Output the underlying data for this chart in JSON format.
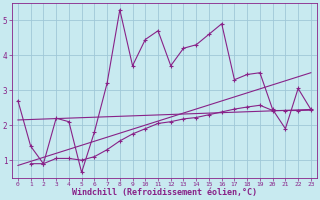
{
  "xlabel": "Windchill (Refroidissement éolien,°C)",
  "bg_color": "#c8eaf0",
  "grid_color": "#a0c8d8",
  "line_color": "#882288",
  "xlim": [
    -0.5,
    23.5
  ],
  "ylim": [
    0.5,
    5.5
  ],
  "xticks": [
    0,
    1,
    2,
    3,
    4,
    5,
    6,
    7,
    8,
    9,
    10,
    11,
    12,
    13,
    14,
    15,
    16,
    17,
    18,
    19,
    20,
    21,
    22,
    23
  ],
  "yticks": [
    1,
    2,
    3,
    4,
    5
  ],
  "series0": {
    "x": [
      0,
      1,
      2,
      3,
      4,
      5,
      6,
      7,
      8,
      9,
      10,
      11,
      12,
      13,
      14,
      15,
      16,
      17,
      18,
      19,
      20,
      21,
      22,
      23
    ],
    "y": [
      2.7,
      1.4,
      0.9,
      2.2,
      2.1,
      0.65,
      1.8,
      3.2,
      5.3,
      3.7,
      4.45,
      4.7,
      3.7,
      4.2,
      4.3,
      4.6,
      4.9,
      3.3,
      3.45,
      3.5,
      2.45,
      1.9,
      3.05,
      2.45
    ]
  },
  "series1": {
    "x": [
      1,
      2,
      3,
      4,
      5,
      6,
      7,
      8,
      9,
      10,
      11,
      12,
      13,
      14,
      15,
      16,
      17,
      18,
      19,
      20,
      21,
      22,
      23
    ],
    "y": [
      0.9,
      0.9,
      1.05,
      1.05,
      1.0,
      1.1,
      1.3,
      1.55,
      1.75,
      1.9,
      2.05,
      2.1,
      2.18,
      2.22,
      2.3,
      2.38,
      2.46,
      2.52,
      2.57,
      2.42,
      2.42,
      2.42,
      2.43
    ]
  },
  "line1": {
    "x": [
      0,
      23
    ],
    "y": [
      2.15,
      2.45
    ]
  },
  "line2": {
    "x": [
      0,
      23
    ],
    "y": [
      0.85,
      3.5
    ]
  }
}
